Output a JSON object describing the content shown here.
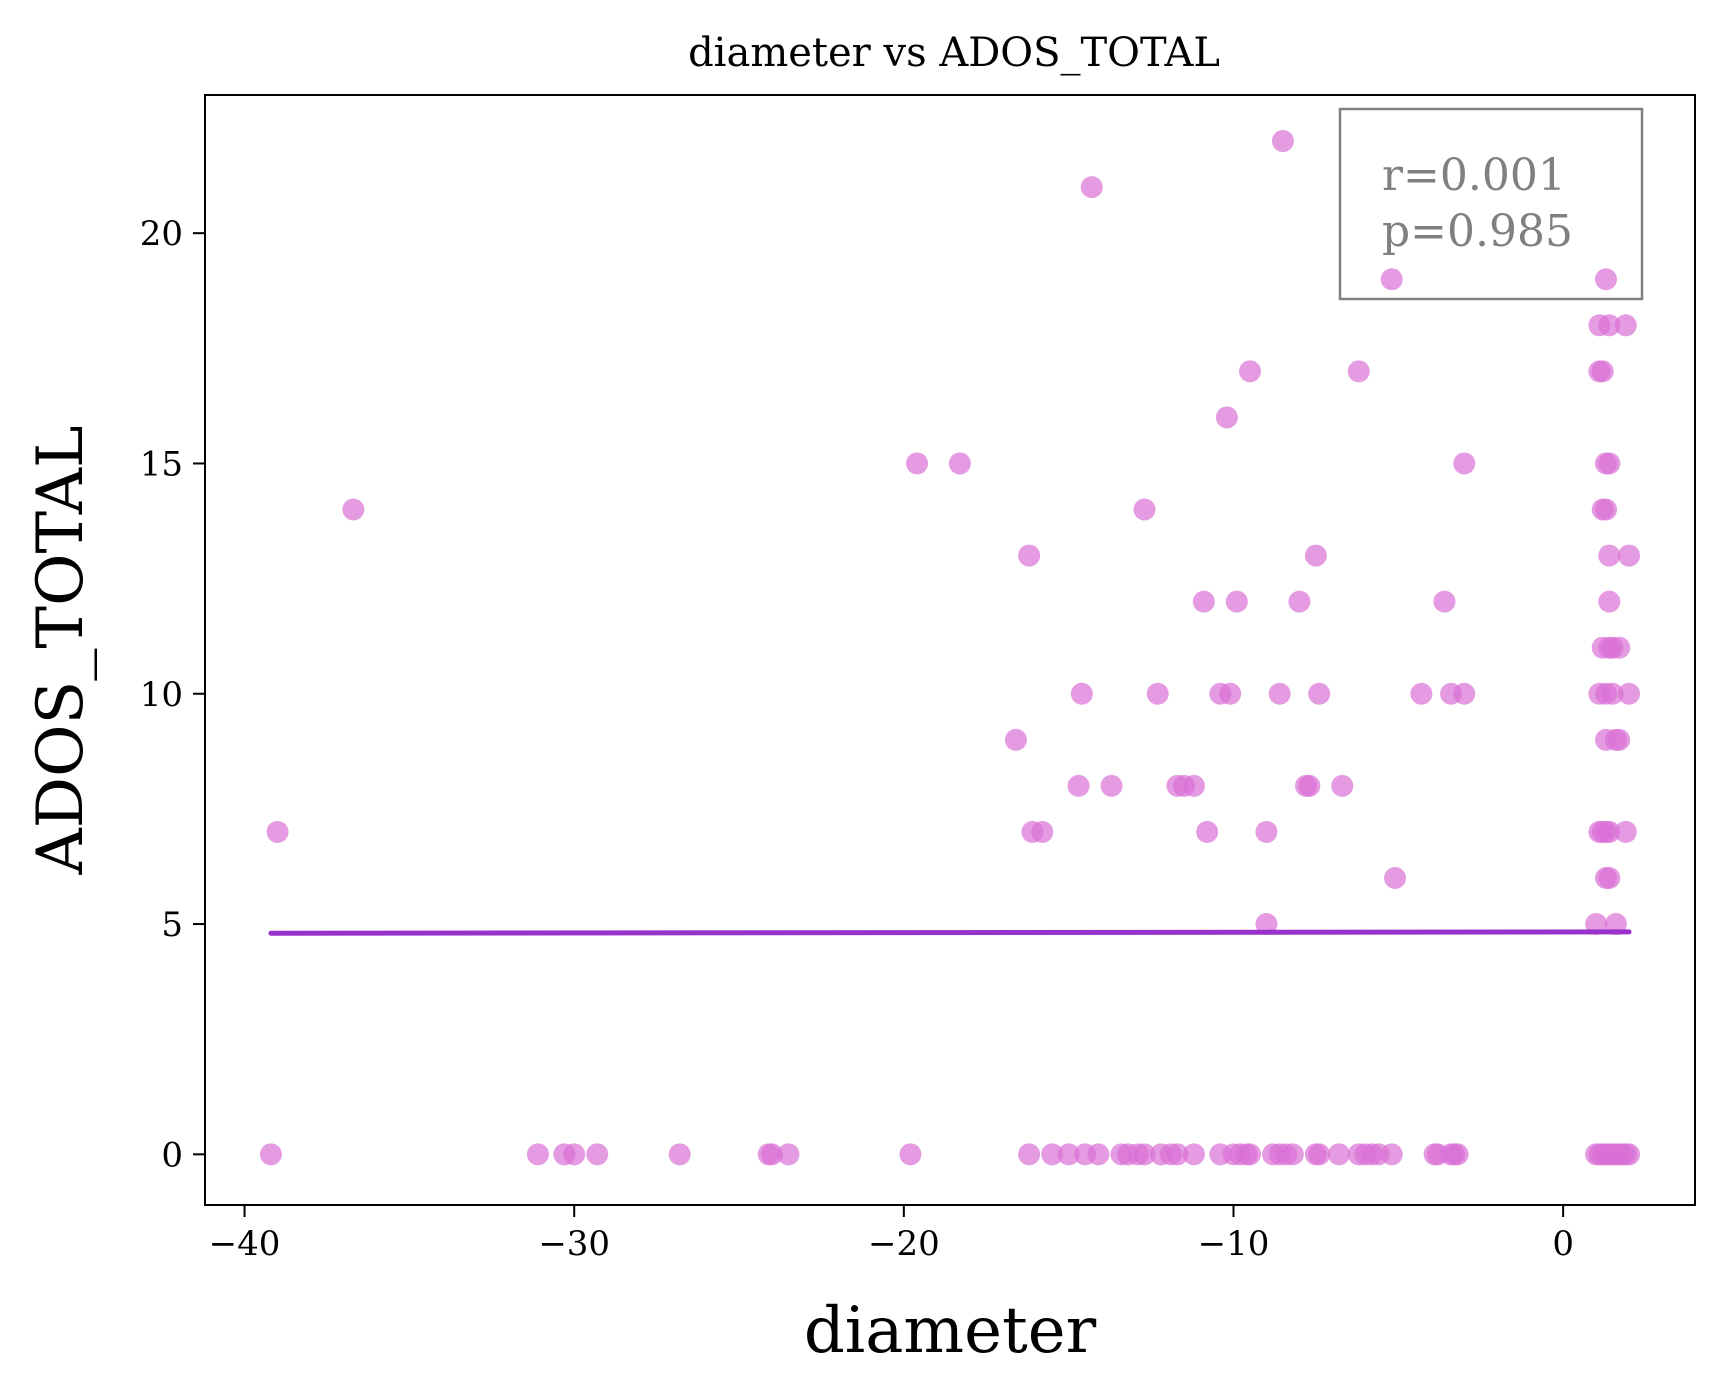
{
  "chart_data": {
    "type": "scatter",
    "title": "diameter vs ADOS_TOTAL",
    "xlabel": "diameter",
    "ylabel": "ADOS_TOTAL",
    "xlim": [
      -41.2,
      4.0
    ],
    "ylim": [
      -1.1,
      23.0
    ],
    "xticks": [
      -40,
      -30,
      -20,
      -10,
      0
    ],
    "xtick_labels": [
      "−40",
      "−30",
      "−20",
      "−10",
      "0"
    ],
    "yticks": [
      0,
      5,
      10,
      15,
      20
    ],
    "ytick_labels": [
      "0",
      "5",
      "10",
      "15",
      "20"
    ],
    "grid": false,
    "annotation": {
      "lines": [
        "r=0.001",
        "p=0.985"
      ],
      "position": "top-right"
    },
    "colors": {
      "points": "#da70d6",
      "fit_line": "#9932cc",
      "annotation_text": "#808080",
      "annotation_border": "#808080"
    },
    "fit_line": {
      "x": [
        -39.2,
        2.0
      ],
      "y": [
        4.8,
        4.83
      ]
    },
    "points": [
      {
        "x": -39.2,
        "y": 0
      },
      {
        "x": -31.1,
        "y": 0
      },
      {
        "x": -30.3,
        "y": 0
      },
      {
        "x": -30.0,
        "y": 0
      },
      {
        "x": -29.3,
        "y": 0
      },
      {
        "x": -26.8,
        "y": 0
      },
      {
        "x": -24.1,
        "y": 0
      },
      {
        "x": -24.0,
        "y": 0
      },
      {
        "x": -23.5,
        "y": 0
      },
      {
        "x": -19.8,
        "y": 0
      },
      {
        "x": -16.2,
        "y": 0
      },
      {
        "x": -15.5,
        "y": 0
      },
      {
        "x": -15.0,
        "y": 0
      },
      {
        "x": -14.5,
        "y": 0
      },
      {
        "x": -14.1,
        "y": 0
      },
      {
        "x": -13.4,
        "y": 0
      },
      {
        "x": -13.2,
        "y": 0
      },
      {
        "x": -12.9,
        "y": 0
      },
      {
        "x": -12.7,
        "y": 0
      },
      {
        "x": -12.2,
        "y": 0
      },
      {
        "x": -11.9,
        "y": 0
      },
      {
        "x": -11.7,
        "y": 0
      },
      {
        "x": -11.2,
        "y": 0
      },
      {
        "x": -10.4,
        "y": 0
      },
      {
        "x": -10.0,
        "y": 0
      },
      {
        "x": -9.8,
        "y": 0
      },
      {
        "x": -9.6,
        "y": 0
      },
      {
        "x": -9.5,
        "y": 0
      },
      {
        "x": -8.8,
        "y": 0
      },
      {
        "x": -8.6,
        "y": 0
      },
      {
        "x": -8.4,
        "y": 0
      },
      {
        "x": -8.2,
        "y": 0
      },
      {
        "x": -7.5,
        "y": 0
      },
      {
        "x": -7.4,
        "y": 0
      },
      {
        "x": -6.8,
        "y": 0
      },
      {
        "x": -6.2,
        "y": 0
      },
      {
        "x": -6.0,
        "y": 0
      },
      {
        "x": -5.8,
        "y": 0
      },
      {
        "x": -5.6,
        "y": 0
      },
      {
        "x": -5.2,
        "y": 0
      },
      {
        "x": -3.9,
        "y": 0
      },
      {
        "x": -3.8,
        "y": 0
      },
      {
        "x": -3.4,
        "y": 0
      },
      {
        "x": -3.3,
        "y": 0
      },
      {
        "x": -3.2,
        "y": 0
      },
      {
        "x": 1.0,
        "y": 0
      },
      {
        "x": 1.1,
        "y": 0
      },
      {
        "x": 1.2,
        "y": 0
      },
      {
        "x": 1.3,
        "y": 0
      },
      {
        "x": 1.4,
        "y": 0
      },
      {
        "x": 1.5,
        "y": 0
      },
      {
        "x": 1.6,
        "y": 0
      },
      {
        "x": 1.7,
        "y": 0
      },
      {
        "x": 1.8,
        "y": 0
      },
      {
        "x": 1.9,
        "y": 0
      },
      {
        "x": 2.0,
        "y": 0
      },
      {
        "x": -9.0,
        "y": 5
      },
      {
        "x": 1.0,
        "y": 5
      },
      {
        "x": 1.6,
        "y": 5
      },
      {
        "x": -5.1,
        "y": 6
      },
      {
        "x": 1.3,
        "y": 6
      },
      {
        "x": 1.4,
        "y": 6
      },
      {
        "x": -39.0,
        "y": 7
      },
      {
        "x": -16.1,
        "y": 7
      },
      {
        "x": -15.8,
        "y": 7
      },
      {
        "x": -10.8,
        "y": 7
      },
      {
        "x": -9.0,
        "y": 7
      },
      {
        "x": 1.1,
        "y": 7
      },
      {
        "x": 1.2,
        "y": 7
      },
      {
        "x": 1.3,
        "y": 7
      },
      {
        "x": 1.4,
        "y": 7
      },
      {
        "x": 1.9,
        "y": 7
      },
      {
        "x": -14.7,
        "y": 8
      },
      {
        "x": -13.7,
        "y": 8
      },
      {
        "x": -11.7,
        "y": 8
      },
      {
        "x": -11.5,
        "y": 8
      },
      {
        "x": -11.2,
        "y": 8
      },
      {
        "x": -7.8,
        "y": 8
      },
      {
        "x": -7.7,
        "y": 8
      },
      {
        "x": -6.7,
        "y": 8
      },
      {
        "x": -16.6,
        "y": 9
      },
      {
        "x": 1.3,
        "y": 9
      },
      {
        "x": 1.6,
        "y": 9
      },
      {
        "x": 1.7,
        "y": 9
      },
      {
        "x": -14.6,
        "y": 10
      },
      {
        "x": -12.3,
        "y": 10
      },
      {
        "x": -10.4,
        "y": 10
      },
      {
        "x": -10.1,
        "y": 10
      },
      {
        "x": -8.6,
        "y": 10
      },
      {
        "x": -7.4,
        "y": 10
      },
      {
        "x": -4.3,
        "y": 10
      },
      {
        "x": -3.4,
        "y": 10
      },
      {
        "x": -3.0,
        "y": 10
      },
      {
        "x": 1.1,
        "y": 10
      },
      {
        "x": 1.3,
        "y": 10
      },
      {
        "x": 1.5,
        "y": 10
      },
      {
        "x": 2.0,
        "y": 10
      },
      {
        "x": 1.2,
        "y": 11
      },
      {
        "x": 1.4,
        "y": 11
      },
      {
        "x": 1.5,
        "y": 11
      },
      {
        "x": 1.7,
        "y": 11
      },
      {
        "x": -10.9,
        "y": 12
      },
      {
        "x": -9.9,
        "y": 12
      },
      {
        "x": -8.0,
        "y": 12
      },
      {
        "x": -3.6,
        "y": 12
      },
      {
        "x": 1.4,
        "y": 12
      },
      {
        "x": -16.2,
        "y": 13
      },
      {
        "x": -7.5,
        "y": 13
      },
      {
        "x": 1.4,
        "y": 13
      },
      {
        "x": 2.0,
        "y": 13
      },
      {
        "x": -36.7,
        "y": 14
      },
      {
        "x": -12.7,
        "y": 14
      },
      {
        "x": 1.2,
        "y": 14
      },
      {
        "x": 1.3,
        "y": 14
      },
      {
        "x": -19.6,
        "y": 15
      },
      {
        "x": -18.3,
        "y": 15
      },
      {
        "x": -3.0,
        "y": 15
      },
      {
        "x": 1.3,
        "y": 15
      },
      {
        "x": 1.4,
        "y": 15
      },
      {
        "x": -10.2,
        "y": 16
      },
      {
        "x": -9.5,
        "y": 17
      },
      {
        "x": -6.2,
        "y": 17
      },
      {
        "x": 1.1,
        "y": 17
      },
      {
        "x": 1.2,
        "y": 17
      },
      {
        "x": 1.1,
        "y": 18
      },
      {
        "x": 1.4,
        "y": 18
      },
      {
        "x": 1.9,
        "y": 18
      },
      {
        "x": -5.2,
        "y": 19
      },
      {
        "x": 1.3,
        "y": 19
      },
      {
        "x": -14.3,
        "y": 21
      },
      {
        "x": -8.5,
        "y": 22
      }
    ]
  }
}
